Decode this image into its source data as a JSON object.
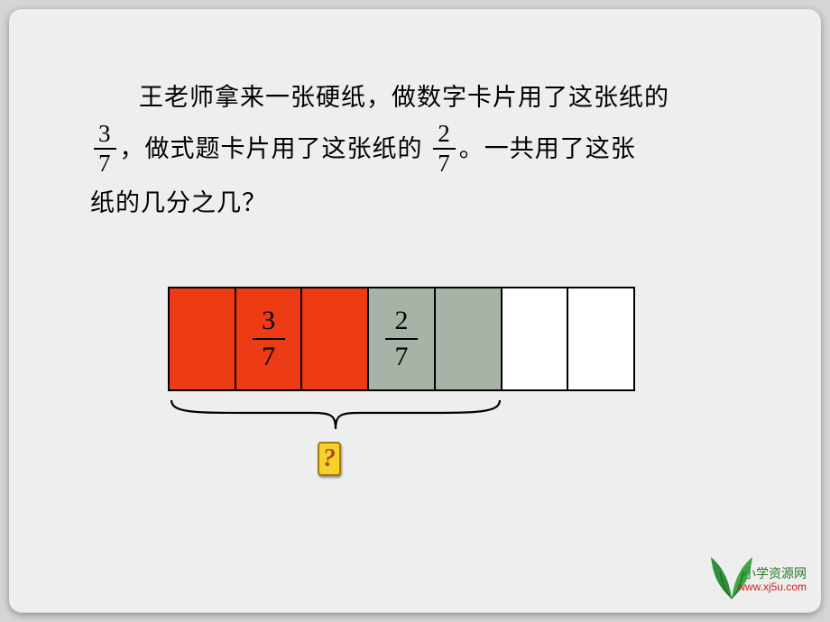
{
  "problem": {
    "line1_pre": "王老师拿来一张硬纸，做数字卡片用了这张纸的",
    "frac1": {
      "num": "3",
      "den": "7"
    },
    "line2_mid": "，做式题卡片用了这张纸的",
    "frac2": {
      "num": "2",
      "den": "7"
    },
    "line2_post": "。一共用了这张",
    "line3": "纸的几分之几？"
  },
  "bar": {
    "cells": [
      {
        "fill": "red"
      },
      {
        "fill": "red",
        "frac": {
          "num": "3",
          "den": "7"
        }
      },
      {
        "fill": "red"
      },
      {
        "fill": "gray",
        "frac": {
          "num": "2",
          "den": "7"
        }
      },
      {
        "fill": "gray"
      },
      {
        "fill": "white"
      },
      {
        "fill": "white"
      }
    ],
    "colors": {
      "red": "#ed3b15",
      "gray": "#a7b3a7",
      "white": "#ffffff",
      "border": "#000000",
      "background": "#eeeeee"
    },
    "brace_span_cells": 5,
    "total_cells": 7
  },
  "qmark_glyph": "?",
  "footer": {
    "line1": "小学资源网",
    "line2": "www.xj5u.com"
  }
}
